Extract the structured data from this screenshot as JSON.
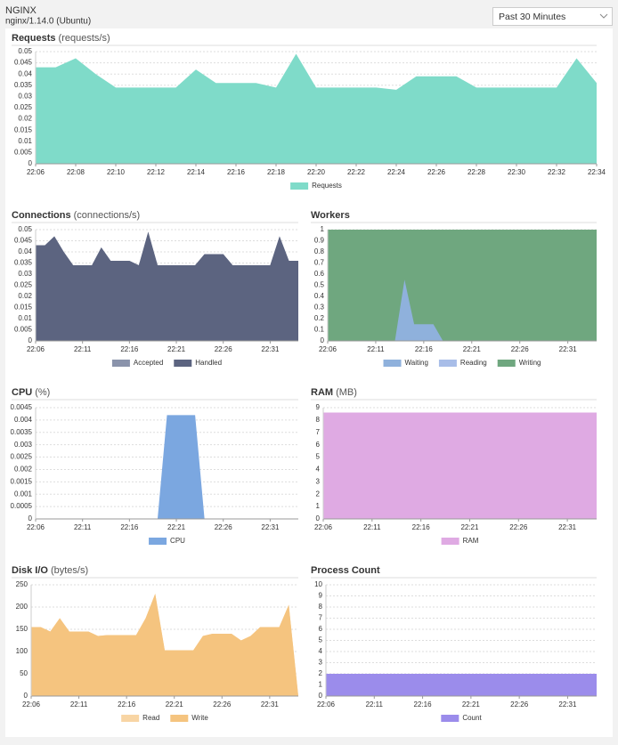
{
  "header": {
    "title": "NGINX",
    "subtitle": "nginx/1.14.0 (Ubuntu)",
    "time_range": "Past 30 Minutes"
  },
  "chart_data": [
    {
      "type": "area",
      "title": "Requests",
      "unit": "(requests/s)",
      "categories": [
        "22:06",
        null,
        "22:08",
        null,
        "22:10",
        null,
        "22:12",
        null,
        "22:14",
        null,
        "22:16",
        null,
        "22:18",
        null,
        "22:20",
        null,
        "22:22",
        null,
        "22:24",
        null,
        "22:26",
        null,
        "22:28",
        null,
        "22:30",
        null,
        "22:32",
        null,
        "22:34"
      ],
      "series": [
        {
          "name": "Requests",
          "color": "#7fdbc9",
          "values": [
            0.043,
            0.043,
            0.047,
            0.04,
            0.034,
            0.034,
            0.034,
            0.034,
            0.042,
            0.036,
            0.036,
            0.036,
            0.034,
            0.049,
            0.034,
            0.034,
            0.034,
            0.034,
            0.033,
            0.039,
            0.039,
            0.039,
            0.034,
            0.034,
            0.034,
            0.034,
            0.034,
            0.047,
            0.036
          ]
        }
      ],
      "ylim": [
        0,
        0.05
      ],
      "yticks": [
        0,
        0.005,
        0.01,
        0.015,
        0.02,
        0.025,
        0.03,
        0.035,
        0.04,
        0.045,
        0.05
      ],
      "grid": true
    },
    {
      "type": "area",
      "title": "Connections",
      "unit": "(connections/s)",
      "categories": [
        "22:06",
        null,
        null,
        null,
        null,
        "22:11",
        null,
        null,
        null,
        null,
        "22:16",
        null,
        null,
        null,
        null,
        "22:21",
        null,
        null,
        null,
        null,
        "22:26",
        null,
        null,
        null,
        null,
        "22:31",
        null,
        null,
        null
      ],
      "series": [
        {
          "name": "Accepted",
          "color": "#8a93ab",
          "values": [
            0.043,
            0.043,
            0.047,
            0.04,
            0.034,
            0.034,
            0.034,
            0.042,
            0.036,
            0.036,
            0.036,
            0.034,
            0.049,
            0.034,
            0.034,
            0.034,
            0.034,
            0.034,
            0.039,
            0.039,
            0.039,
            0.034,
            0.034,
            0.034,
            0.034,
            0.034,
            0.047,
            0.036,
            0.036
          ]
        },
        {
          "name": "Handled",
          "color": "#5c6480",
          "values": [
            0.043,
            0.043,
            0.047,
            0.04,
            0.034,
            0.034,
            0.034,
            0.042,
            0.036,
            0.036,
            0.036,
            0.034,
            0.049,
            0.034,
            0.034,
            0.034,
            0.034,
            0.034,
            0.039,
            0.039,
            0.039,
            0.034,
            0.034,
            0.034,
            0.034,
            0.034,
            0.047,
            0.036,
            0.036
          ]
        }
      ],
      "ylim": [
        0,
        0.05
      ],
      "yticks": [
        0,
        0.005,
        0.01,
        0.015,
        0.02,
        0.025,
        0.03,
        0.035,
        0.04,
        0.045,
        0.05
      ],
      "grid": true
    },
    {
      "type": "area",
      "title": "Workers",
      "categories": [
        "22:06",
        null,
        null,
        null,
        null,
        "22:11",
        null,
        null,
        null,
        null,
        "22:16",
        null,
        null,
        null,
        null,
        "22:21",
        null,
        null,
        null,
        null,
        "22:26",
        null,
        null,
        null,
        null,
        "22:31",
        null,
        null,
        null
      ],
      "series": [
        {
          "name": "Writing",
          "color": "#6fa77f",
          "values": [
            1,
            1,
            1,
            1,
            1,
            1,
            1,
            1,
            1,
            1,
            1,
            1,
            1,
            1,
            1,
            1,
            1,
            1,
            1,
            1,
            1,
            1,
            1,
            1,
            1,
            1,
            1,
            1,
            1
          ]
        },
        {
          "name": "Reading",
          "color": "#a8bde8",
          "values": [
            0,
            0,
            0,
            0,
            0,
            0,
            0,
            0,
            0,
            0,
            0,
            0,
            0,
            0,
            0,
            0,
            0,
            0,
            0,
            0,
            0,
            0,
            0,
            0,
            0,
            0,
            0,
            0,
            0
          ]
        },
        {
          "name": "Waiting",
          "color": "#8fb1dc",
          "values": [
            0,
            0,
            0,
            0,
            0,
            0,
            0,
            0,
            0.55,
            0.15,
            0.15,
            0.15,
            0,
            0,
            0,
            0,
            0,
            0,
            0,
            0,
            0,
            0,
            0,
            0,
            0,
            0,
            0,
            0,
            0
          ]
        }
      ],
      "legend_order": [
        "Waiting",
        "Reading",
        "Writing"
      ],
      "ylim": [
        0,
        1
      ],
      "yticks": [
        0,
        0.1,
        0.2,
        0.3,
        0.4,
        0.5,
        0.6,
        0.7,
        0.8,
        0.9,
        1
      ],
      "grid": true
    },
    {
      "type": "area",
      "title": "CPU",
      "unit": "(%)",
      "categories": [
        "22:06",
        null,
        null,
        null,
        null,
        "22:11",
        null,
        null,
        null,
        null,
        "22:16",
        null,
        null,
        null,
        null,
        "22:21",
        null,
        null,
        null,
        null,
        "22:26",
        null,
        null,
        null,
        null,
        "22:31",
        null,
        null,
        null
      ],
      "series": [
        {
          "name": "CPU",
          "color": "#7ba7e0",
          "values": [
            0,
            0,
            0,
            0,
            0,
            0,
            0,
            0,
            0,
            0,
            0,
            0,
            0,
            0,
            0.0042,
            0.0042,
            0.0042,
            0.0042,
            0,
            0,
            0,
            0,
            0,
            0,
            0,
            0,
            0,
            0,
            0
          ]
        }
      ],
      "ylim": [
        0,
        0.0045
      ],
      "yticks": [
        0,
        0.0005,
        0.001,
        0.0015,
        0.002,
        0.0025,
        0.003,
        0.0035,
        0.004,
        0.0045
      ],
      "grid": true
    },
    {
      "type": "area",
      "title": "RAM",
      "unit": "(MB)",
      "categories": [
        "22:06",
        null,
        null,
        null,
        null,
        "22:11",
        null,
        null,
        null,
        null,
        "22:16",
        null,
        null,
        null,
        null,
        "22:21",
        null,
        null,
        null,
        null,
        "22:26",
        null,
        null,
        null,
        null,
        "22:31",
        null,
        null,
        null
      ],
      "series": [
        {
          "name": "RAM",
          "color": "#dfaae3",
          "values": [
            8.6,
            8.6,
            8.6,
            8.6,
            8.6,
            8.6,
            8.6,
            8.6,
            8.6,
            8.6,
            8.6,
            8.6,
            8.6,
            8.6,
            8.6,
            8.6,
            8.6,
            8.6,
            8.6,
            8.6,
            8.6,
            8.6,
            8.6,
            8.6,
            8.6,
            8.6,
            8.6,
            8.6,
            8.6
          ]
        }
      ],
      "ylim": [
        0,
        9
      ],
      "yticks": [
        0,
        1,
        2,
        3,
        4,
        5,
        6,
        7,
        8,
        9
      ],
      "grid": true
    },
    {
      "type": "area",
      "title": "Disk I/O",
      "unit": "(bytes/s)",
      "categories": [
        "22:06",
        null,
        null,
        null,
        null,
        "22:11",
        null,
        null,
        null,
        null,
        "22:16",
        null,
        null,
        null,
        null,
        "22:21",
        null,
        null,
        null,
        null,
        "22:26",
        null,
        null,
        null,
        null,
        "22:31",
        null,
        null,
        null
      ],
      "series": [
        {
          "name": "Read",
          "color": "#f8d5a4",
          "values": [
            155,
            155,
            145,
            175,
            145,
            145,
            145,
            135,
            137,
            137,
            137,
            137,
            175,
            230,
            103,
            103,
            103,
            103,
            135,
            140,
            140,
            140,
            125,
            135,
            155,
            155,
            155,
            205,
            0
          ]
        },
        {
          "name": "Write",
          "color": "#f5c47f",
          "values": [
            155,
            155,
            145,
            175,
            145,
            145,
            145,
            135,
            137,
            137,
            137,
            137,
            175,
            230,
            103,
            103,
            103,
            103,
            135,
            140,
            140,
            140,
            125,
            135,
            155,
            155,
            155,
            205,
            0
          ]
        }
      ],
      "ylim": [
        0,
        250
      ],
      "yticks": [
        0,
        50,
        100,
        150,
        200,
        250
      ],
      "grid": true
    },
    {
      "type": "area",
      "title": "Process Count",
      "categories": [
        "22:06",
        null,
        null,
        null,
        null,
        "22:11",
        null,
        null,
        null,
        null,
        "22:16",
        null,
        null,
        null,
        null,
        "22:21",
        null,
        null,
        null,
        null,
        "22:26",
        null,
        null,
        null,
        null,
        "22:31",
        null,
        null,
        null
      ],
      "series": [
        {
          "name": "Count",
          "color": "#9b8ceb",
          "values": [
            2,
            2,
            2,
            2,
            2,
            2,
            2,
            2,
            2,
            2,
            2,
            2,
            2,
            2,
            2,
            2,
            2,
            2,
            2,
            2,
            2,
            2,
            2,
            2,
            2,
            2,
            2,
            2,
            2
          ]
        }
      ],
      "ylim": [
        0,
        10
      ],
      "yticks": [
        0,
        1,
        2,
        3,
        4,
        5,
        6,
        7,
        8,
        9,
        10
      ],
      "grid": true
    }
  ]
}
